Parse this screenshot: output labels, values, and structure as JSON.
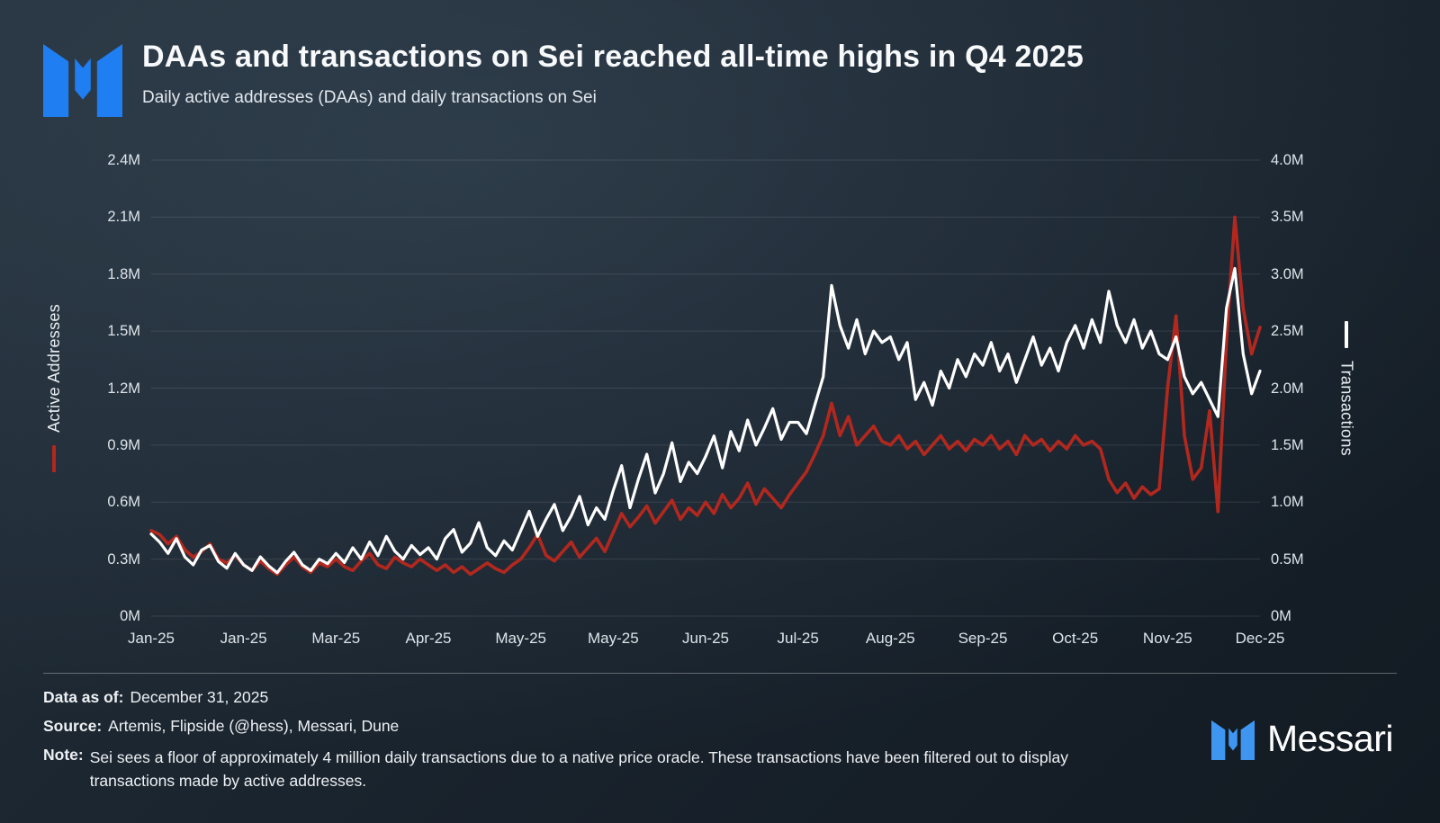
{
  "header": {
    "title": "DAAs and transactions on Sei reached all-time highs in Q4 2025",
    "subtitle": "Daily active addresses (DAAs) and daily transactions on Sei"
  },
  "chart_data": {
    "type": "line",
    "title": "DAAs and transactions on Sei reached all-time highs in Q4 2025",
    "grid": "horizontal",
    "x_tick_labels": [
      "Jan-25",
      "Jan-25",
      "Mar-25",
      "Apr-25",
      "May-25",
      "May-25",
      "Jun-25",
      "Jul-25",
      "Aug-25",
      "Sep-25",
      "Oct-25",
      "Nov-25",
      "Dec-25"
    ],
    "left_axis": {
      "label": "Active Addresses",
      "min": 0,
      "max": 2.4,
      "unit": "M",
      "ticks": [
        "2.4M",
        "2.1M",
        "1.8M",
        "1.5M",
        "1.2M",
        "0.9M",
        "0.6M",
        "0.3M",
        "0M"
      ],
      "indicator_color": "#b3281e"
    },
    "right_axis": {
      "label": "Transactions",
      "min": 0,
      "max": 4.0,
      "unit": "M",
      "ticks": [
        "4.0M",
        "3.5M",
        "3.0M",
        "2.5M",
        "2.0M",
        "1.5M",
        "1.0M",
        "0.5M",
        "0M"
      ],
      "indicator_color": "#ffffff"
    },
    "series": [
      {
        "key": "daa",
        "name": "Active Addresses",
        "axis": "left",
        "color": "#b3281e",
        "width": 3.6,
        "values": [
          0.45,
          0.43,
          0.38,
          0.42,
          0.35,
          0.31,
          0.34,
          0.38,
          0.3,
          0.28,
          0.32,
          0.27,
          0.24,
          0.29,
          0.25,
          0.22,
          0.27,
          0.31,
          0.26,
          0.23,
          0.28,
          0.26,
          0.3,
          0.26,
          0.24,
          0.29,
          0.33,
          0.27,
          0.25,
          0.31,
          0.28,
          0.26,
          0.3,
          0.27,
          0.24,
          0.27,
          0.23,
          0.26,
          0.22,
          0.25,
          0.28,
          0.25,
          0.23,
          0.27,
          0.3,
          0.36,
          0.43,
          0.32,
          0.29,
          0.34,
          0.39,
          0.31,
          0.36,
          0.41,
          0.34,
          0.44,
          0.54,
          0.47,
          0.52,
          0.58,
          0.49,
          0.55,
          0.61,
          0.51,
          0.57,
          0.53,
          0.6,
          0.54,
          0.64,
          0.57,
          0.62,
          0.7,
          0.59,
          0.67,
          0.62,
          0.57,
          0.64,
          0.7,
          0.76,
          0.85,
          0.95,
          1.12,
          0.95,
          1.05,
          0.9,
          0.95,
          1.0,
          0.92,
          0.9,
          0.95,
          0.88,
          0.92,
          0.85,
          0.9,
          0.95,
          0.88,
          0.92,
          0.87,
          0.93,
          0.9,
          0.95,
          0.88,
          0.92,
          0.85,
          0.95,
          0.9,
          0.93,
          0.87,
          0.92,
          0.88,
          0.95,
          0.9,
          0.92,
          0.88,
          0.72,
          0.65,
          0.7,
          0.62,
          0.68,
          0.64,
          0.67,
          1.2,
          1.58,
          0.95,
          0.72,
          0.78,
          1.08,
          0.55,
          1.45,
          2.1,
          1.62,
          1.38,
          1.52
        ]
      },
      {
        "key": "transactions",
        "name": "Transactions",
        "axis": "right",
        "color": "#ffffff",
        "width": 3.2,
        "values": [
          0.72,
          0.65,
          0.55,
          0.68,
          0.52,
          0.45,
          0.58,
          0.62,
          0.48,
          0.42,
          0.55,
          0.45,
          0.4,
          0.52,
          0.44,
          0.38,
          0.48,
          0.56,
          0.45,
          0.4,
          0.5,
          0.46,
          0.55,
          0.47,
          0.6,
          0.5,
          0.65,
          0.53,
          0.7,
          0.57,
          0.5,
          0.62,
          0.54,
          0.6,
          0.5,
          0.68,
          0.76,
          0.56,
          0.64,
          0.82,
          0.6,
          0.53,
          0.66,
          0.58,
          0.75,
          0.92,
          0.7,
          0.85,
          0.98,
          0.75,
          0.88,
          1.05,
          0.8,
          0.95,
          0.85,
          1.1,
          1.32,
          0.95,
          1.2,
          1.42,
          1.08,
          1.25,
          1.52,
          1.18,
          1.35,
          1.25,
          1.4,
          1.58,
          1.3,
          1.62,
          1.45,
          1.72,
          1.5,
          1.65,
          1.82,
          1.55,
          1.7,
          1.7,
          1.6,
          1.85,
          2.1,
          2.9,
          2.55,
          2.35,
          2.6,
          2.3,
          2.5,
          2.4,
          2.45,
          2.25,
          2.4,
          1.9,
          2.05,
          1.85,
          2.15,
          2.0,
          2.25,
          2.1,
          2.3,
          2.2,
          2.4,
          2.15,
          2.3,
          2.05,
          2.25,
          2.45,
          2.2,
          2.35,
          2.15,
          2.4,
          2.55,
          2.35,
          2.6,
          2.4,
          2.85,
          2.55,
          2.4,
          2.6,
          2.35,
          2.5,
          2.3,
          2.25,
          2.45,
          2.1,
          1.95,
          2.05,
          1.9,
          1.75,
          2.7,
          3.05,
          2.3,
          1.95,
          2.15
        ]
      }
    ]
  },
  "footer": {
    "data_as_of_label": "Data as of:",
    "data_as_of": "December 31, 2025",
    "source_label": "Source:",
    "source": "Artemis, Flipside (@hess), Messari, Dune",
    "note_label": "Note:",
    "note": "Sei sees a floor of approximately 4 million daily transactions due to a native price oracle. These transactions have been filtered out to display transactions made by active addresses."
  },
  "branding": {
    "wordmark": "Messari",
    "logo_color": "#1f7ef2",
    "logo_color_footer": "#3e96f0"
  }
}
